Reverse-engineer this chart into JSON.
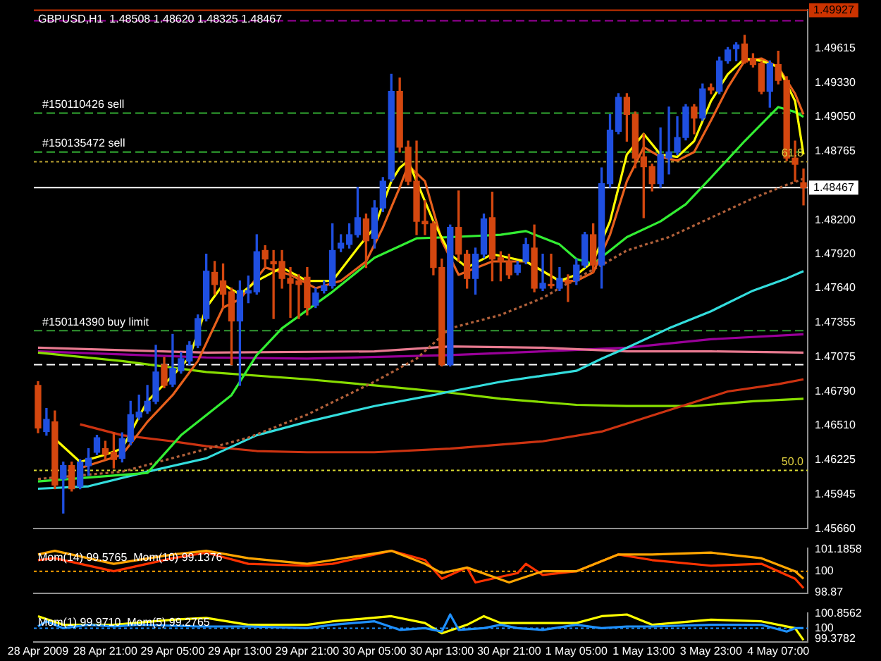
{
  "chart_data": [
    {
      "type": "candlestick",
      "title": "GBPUSD,H1  1.48508 1.48620 1.48325 1.48467",
      "tick_labels": "y",
      "ylim": [
        1.4566,
        1.4993
      ],
      "categories": [
        null,
        null,
        null,
        null,
        null,
        null,
        null,
        null,
        null,
        null,
        null,
        null,
        null,
        null,
        null,
        null,
        null,
        null,
        null,
        null,
        null,
        null,
        null,
        null,
        null,
        null,
        null,
        null,
        null,
        null,
        null,
        null,
        null,
        null,
        null,
        null,
        null,
        null,
        null,
        null,
        null,
        null,
        null,
        null,
        null,
        null,
        null,
        null,
        null,
        null,
        null,
        null,
        null,
        null,
        null,
        null,
        null,
        null,
        null,
        null,
        null,
        null,
        null,
        null,
        null,
        null,
        null,
        null,
        null,
        null,
        null,
        null,
        null,
        null,
        null,
        null,
        null,
        null,
        null,
        null,
        null,
        null,
        null,
        null,
        null,
        null,
        null,
        null,
        null,
        null,
        null,
        null
      ],
      "yticks": [
        {
          "value": 1.49615,
          "label": "1.49615"
        },
        {
          "value": 1.4933,
          "label": "1.49330"
        },
        {
          "value": 1.4905,
          "label": "1.49050"
        },
        {
          "value": 1.48765,
          "label": "1.48765"
        },
        {
          "value": 1.482,
          "label": "1.48200"
        },
        {
          "value": 1.4792,
          "label": "1.47920"
        },
        {
          "value": 1.4764,
          "label": "1.47640"
        },
        {
          "value": 1.47355,
          "label": "1.47355"
        },
        {
          "value": 1.47075,
          "label": "1.47075"
        },
        {
          "value": 1.4679,
          "label": "1.46790"
        },
        {
          "value": 1.4651,
          "label": "1.46510"
        },
        {
          "value": 1.46225,
          "label": "1.46225"
        },
        {
          "value": 1.45945,
          "label": "1.45945"
        },
        {
          "value": 1.4566,
          "label": "1.45660"
        }
      ],
      "ohlc": [
        [
          1.4684,
          1.4687,
          1.4645,
          1.4649
        ],
        [
          1.4646,
          1.4665,
          1.4643,
          1.4656
        ],
        [
          1.4654,
          1.4663,
          1.4599,
          1.4602
        ],
        [
          1.4607,
          1.4621,
          1.4579,
          1.4618
        ],
        [
          1.4618,
          1.4621,
          1.4597,
          1.4599
        ],
        [
          1.4601,
          1.4623,
          1.4599,
          1.4621
        ],
        [
          1.4618,
          1.4632,
          1.461,
          1.4624
        ],
        [
          1.4629,
          1.4643,
          1.4627,
          1.4641
        ],
        [
          1.4632,
          1.4638,
          1.4623,
          1.4627
        ],
        [
          1.4629,
          1.4645,
          1.4616,
          1.4623
        ],
        [
          1.4624,
          1.4645,
          1.4621,
          1.464
        ],
        [
          1.4638,
          1.4671,
          1.4635,
          1.466
        ],
        [
          1.4658,
          1.4676,
          1.4656,
          1.4662
        ],
        [
          1.4663,
          1.4684,
          1.4661,
          1.4671
        ],
        [
          1.4671,
          1.4717,
          1.4669,
          1.4695
        ],
        [
          1.4701,
          1.4707,
          1.4682,
          1.4684
        ],
        [
          1.4685,
          1.4726,
          1.4683,
          1.4698
        ],
        [
          1.4696,
          1.4711,
          1.4694,
          1.4706
        ],
        [
          1.4704,
          1.472,
          1.4701,
          1.4717
        ],
        [
          1.4717,
          1.4742,
          1.4715,
          1.4739
        ],
        [
          1.4739,
          1.4792,
          1.4737,
          1.4778
        ],
        [
          1.4777,
          1.4786,
          1.4759,
          1.4767
        ],
        [
          1.477,
          1.4784,
          1.4748,
          1.4759
        ],
        [
          1.4761,
          1.4764,
          1.4701,
          1.4737
        ],
        [
          1.4737,
          1.477,
          1.4684,
          1.4762
        ],
        [
          1.476,
          1.4774,
          1.4752,
          1.4762
        ],
        [
          1.4761,
          1.4808,
          1.4759,
          1.4794
        ],
        [
          1.4795,
          1.4799,
          1.4781,
          1.4788
        ],
        [
          1.4786,
          1.4795,
          1.4739,
          1.4784
        ],
        [
          1.4786,
          1.4795,
          1.4764,
          1.4772
        ],
        [
          1.4772,
          1.4781,
          1.474,
          1.4768
        ],
        [
          1.477,
          1.4775,
          1.4739,
          1.4767
        ],
        [
          1.4773,
          1.4781,
          1.4742,
          1.4748
        ],
        [
          1.475,
          1.4764,
          1.4748,
          1.476
        ],
        [
          1.4762,
          1.477,
          1.476,
          1.4766
        ],
        [
          1.4766,
          1.4817,
          1.4764,
          1.4795
        ],
        [
          1.4797,
          1.4808,
          1.4794,
          1.4801
        ],
        [
          1.48,
          1.4817,
          1.4797,
          1.4808
        ],
        [
          1.4808,
          1.4847,
          1.4806,
          1.4822
        ],
        [
          1.4821,
          1.4825,
          1.4781,
          1.4803
        ],
        [
          1.4805,
          1.4836,
          1.4797,
          1.483
        ],
        [
          1.483,
          1.4855,
          1.4827,
          1.4852
        ],
        [
          1.4854,
          1.494,
          1.4852,
          1.4926
        ],
        [
          1.4926,
          1.4937,
          1.4876,
          1.488
        ],
        [
          1.488,
          1.4885,
          1.4849,
          1.4852
        ],
        [
          1.4852,
          1.4885,
          1.4808,
          1.4819
        ],
        [
          1.4819,
          1.4836,
          1.4808,
          1.4817
        ],
        [
          1.4817,
          1.4819,
          1.4775,
          1.4781
        ],
        [
          1.4781,
          1.4788,
          1.47,
          1.4701
        ],
        [
          1.4701,
          1.4816,
          1.47,
          1.4814
        ],
        [
          1.4814,
          1.4844,
          1.4786,
          1.4792
        ],
        [
          1.4792,
          1.4795,
          1.4764,
          1.4772
        ],
        [
          1.4772,
          1.4797,
          1.4759,
          1.4792
        ],
        [
          1.4792,
          1.4825,
          1.4789,
          1.4821
        ],
        [
          1.4822,
          1.4843,
          1.477,
          1.4788
        ],
        [
          1.4789,
          1.4794,
          1.477,
          1.4786
        ],
        [
          1.4786,
          1.4792,
          1.4772,
          1.4775
        ],
        [
          1.4777,
          1.4786,
          1.4775,
          1.4783
        ],
        [
          1.4786,
          1.4805,
          1.4784,
          1.48
        ],
        [
          1.4797,
          1.4816,
          1.4761,
          1.4764
        ],
        [
          1.4764,
          1.4792,
          1.4762,
          1.4768
        ],
        [
          1.4767,
          1.4792,
          1.4764,
          1.4766
        ],
        [
          1.4764,
          1.4781,
          1.4762,
          1.4772
        ],
        [
          1.477,
          1.4775,
          1.4753,
          1.4768
        ],
        [
          1.477,
          1.4788,
          1.4767,
          1.4783
        ],
        [
          1.4783,
          1.481,
          1.4781,
          1.4808
        ],
        [
          1.4808,
          1.4817,
          1.4777,
          1.4783
        ],
        [
          1.4783,
          1.4863,
          1.4764,
          1.485
        ],
        [
          1.485,
          1.4907,
          1.4847,
          1.4894
        ],
        [
          1.4893,
          1.4924,
          1.4891,
          1.4921
        ],
        [
          1.4921,
          1.4924,
          1.4885,
          1.4907
        ],
        [
          1.4907,
          1.4909,
          1.4863,
          1.4871
        ],
        [
          1.4872,
          1.4891,
          1.4822,
          1.4864
        ],
        [
          1.4864,
          1.4866,
          1.4844,
          1.485
        ],
        [
          1.485,
          1.4896,
          1.4847,
          1.4874
        ],
        [
          1.4871,
          1.4913,
          1.4858,
          1.4876
        ],
        [
          1.4876,
          1.4905,
          1.4874,
          1.4888
        ],
        [
          1.4888,
          1.4915,
          1.4886,
          1.4913
        ],
        [
          1.4913,
          1.4915,
          1.4891,
          1.4904
        ],
        [
          1.4904,
          1.4932,
          1.4902,
          1.4928
        ],
        [
          1.4929,
          1.4932,
          1.4924,
          1.4927
        ],
        [
          1.4926,
          1.4954,
          1.4924,
          1.4951
        ],
        [
          1.4951,
          1.4962,
          1.4949,
          1.496
        ],
        [
          1.4961,
          1.4966,
          1.4951,
          1.4964
        ],
        [
          1.4965,
          1.4972,
          1.4949,
          1.495
        ],
        [
          1.4953,
          1.4957,
          1.4946,
          1.4948
        ],
        [
          1.4949,
          1.4951,
          1.4924,
          1.4926
        ],
        [
          1.4926,
          1.4951,
          1.4913,
          1.4949
        ],
        [
          1.4948,
          1.4959,
          1.4932,
          1.4935
        ],
        [
          1.4935,
          1.4938,
          1.4869,
          1.4871
        ],
        [
          1.4871,
          1.4885,
          1.4852,
          1.4866
        ],
        [
          1.48508,
          1.4862,
          1.48325,
          1.48467
        ]
      ],
      "series": [
        {
          "type": "line",
          "color": "#ffff00",
          "values": [
            null,
            null,
            1.464,
            null,
            null,
            1.4621,
            null,
            null,
            1.4627,
            null,
            1.4632,
            null,
            null,
            1.4671,
            null,
            null,
            1.4692,
            null,
            1.4707,
            null,
            1.4748,
            null,
            1.4767,
            null,
            1.4759,
            null,
            1.477,
            null,
            null,
            1.4781,
            null,
            null,
            1.477,
            null,
            null,
            1.477,
            null,
            null,
            1.4797,
            null,
            1.4814,
            null,
            1.4852,
            1.4863,
            1.4869,
            1.4852,
            null,
            1.4819,
            null,
            1.4792,
            null,
            1.4781,
            null,
            null,
            1.4792,
            null,
            null,
            null,
            1.4786,
            null,
            null,
            null,
            1.477,
            null,
            1.4775,
            null,
            1.4786,
            null,
            1.4819,
            null,
            1.4874,
            null,
            1.4891,
            null,
            1.4874,
            null,
            1.4872,
            null,
            1.4885,
            null,
            1.4918,
            null,
            1.494,
            null,
            1.4953,
            null,
            1.4951,
            null,
            1.4946,
            null,
            1.4918,
            1.4874
          ]
        },
        {
          "type": "line",
          "color": "#e8601c",
          "values": [
            null,
            null,
            null,
            null,
            null,
            1.4616,
            null,
            null,
            null,
            null,
            1.4627,
            null,
            null,
            1.4654,
            null,
            null,
            1.4676,
            null,
            null,
            1.4704,
            null,
            null,
            1.4748,
            null,
            1.4755,
            null,
            null,
            1.4781,
            null,
            null,
            1.4775,
            null,
            null,
            1.4764,
            null,
            null,
            1.477,
            null,
            null,
            1.4786,
            null,
            1.4814,
            null,
            1.4847,
            1.4865,
            null,
            1.4852,
            null,
            1.4803,
            null,
            1.4775,
            null,
            null,
            null,
            1.4786,
            null,
            null,
            null,
            1.4786,
            null,
            null,
            null,
            1.477,
            null,
            1.477,
            null,
            1.4777,
            null,
            1.4808,
            null,
            1.4852,
            null,
            1.488,
            null,
            1.4872,
            null,
            1.4869,
            null,
            1.4876,
            null,
            1.4902,
            null,
            1.4929,
            null,
            1.4951,
            null,
            1.4953,
            null,
            1.4946,
            null,
            1.4924,
            1.4907
          ]
        },
        {
          "type": "line",
          "color": "#33ee33",
          "values": [
            1.4605,
            null,
            null,
            null,
            null,
            null,
            null,
            null,
            null,
            null,
            null,
            null,
            null,
            1.4612,
            null,
            null,
            null,
            1.4643,
            null,
            null,
            null,
            null,
            null,
            1.4676,
            null,
            null,
            1.4709,
            null,
            null,
            1.4731,
            null,
            null,
            null,
            null,
            null,
            1.4761,
            null,
            null,
            null,
            null,
            1.4789,
            null,
            null,
            null,
            null,
            1.4805,
            null,
            null,
            null,
            1.4806,
            null,
            null,
            null,
            null,
            null,
            1.4808,
            null,
            null,
            1.4811,
            null,
            null,
            null,
            1.48,
            null,
            1.4788,
            null,
            1.4784,
            null,
            1.4795,
            null,
            1.4806,
            null,
            null,
            null,
            1.4819,
            null,
            null,
            1.4833,
            null,
            null,
            1.4855,
            null,
            null,
            null,
            1.4885,
            null,
            null,
            null,
            1.4913,
            null,
            1.4909,
            1.4905
          ]
        },
        {
          "type": "line",
          "color": "#b0603a",
          "line_style": "dotted",
          "values": [
            1.4607,
            null,
            null,
            null,
            null,
            null,
            null,
            null,
            null,
            null,
            1.4613,
            null,
            null,
            null,
            null,
            null,
            null,
            null,
            null,
            null,
            null,
            null,
            null,
            null,
            null,
            1.4641,
            null,
            null,
            null,
            null,
            null,
            null,
            1.466,
            null,
            null,
            null,
            null,
            null,
            null,
            null,
            1.4687,
            null,
            null,
            null,
            null,
            1.4706,
            null,
            null,
            null,
            1.4731,
            null,
            null,
            null,
            null,
            null,
            1.4742,
            null,
            null,
            null,
            null,
            1.4756,
            null,
            null,
            null,
            1.4772,
            null,
            null,
            1.4783,
            null,
            null,
            1.4795,
            null,
            null,
            null,
            null,
            1.4806,
            null,
            null,
            null,
            null,
            1.4822,
            null,
            null,
            null,
            null,
            1.4838,
            null,
            null,
            null,
            1.4849,
            null,
            1.4854
          ]
        },
        {
          "type": "line",
          "color": "#33dddd",
          "values": [
            1.4599,
            null,
            null,
            null,
            null,
            null,
            1.4601,
            null,
            null,
            null,
            null,
            null,
            null,
            1.4613,
            null,
            null,
            null,
            null,
            null,
            null,
            1.4624,
            null,
            null,
            null,
            null,
            null,
            1.4643,
            null,
            null,
            null,
            null,
            null,
            1.4654,
            null,
            null,
            null,
            null,
            null,
            null,
            null,
            1.4667,
            null,
            null,
            null,
            null,
            null,
            null,
            1.4676,
            null,
            1.4679,
            null,
            null,
            null,
            null,
            null,
            1.4687,
            null,
            null,
            null,
            null,
            1.4692,
            null,
            null,
            null,
            1.4696,
            null,
            null,
            1.4706,
            null,
            null,
            1.4715,
            null,
            null,
            null,
            null,
            1.4731,
            null,
            null,
            null,
            null,
            1.4745,
            null,
            null,
            null,
            null,
            1.4762,
            null,
            null,
            null,
            1.4772,
            null,
            1.4778
          ]
        },
        {
          "type": "line",
          "color": "#cc3311",
          "values": [
            null,
            null,
            null,
            null,
            null,
            1.4652,
            null,
            null,
            null,
            null,
            1.4643,
            null,
            null,
            null,
            null,
            null,
            1.4638,
            null,
            null,
            null,
            1.4634,
            null,
            null,
            null,
            null,
            null,
            1.463,
            null,
            null,
            null,
            null,
            null,
            1.4629,
            null,
            null,
            null,
            null,
            null,
            null,
            null,
            1.4629,
            null,
            null,
            null,
            null,
            null,
            null,
            null,
            null,
            1.4632,
            null,
            null,
            null,
            null,
            null,
            null,
            null,
            null,
            null,
            null,
            1.4638,
            null,
            null,
            null,
            null,
            null,
            null,
            1.4646,
            null,
            null,
            null,
            null,
            1.4657,
            null,
            null,
            null,
            null,
            1.4668,
            null,
            null,
            null,
            null,
            1.4679,
            null,
            null,
            null,
            null,
            null,
            1.4685,
            null,
            null,
            1.4689
          ]
        },
        {
          "type": "line",
          "color": "#88dd00",
          "values": [
            1.4711,
            null,
            null,
            null,
            null,
            null,
            null,
            null,
            null,
            null,
            1.4704,
            null,
            null,
            null,
            null,
            null,
            null,
            null,
            null,
            null,
            1.4695,
            null,
            null,
            null,
            null,
            null,
            null,
            null,
            null,
            null,
            null,
            null,
            1.4689,
            null,
            null,
            null,
            null,
            null,
            null,
            null,
            1.4684,
            null,
            null,
            null,
            null,
            null,
            null,
            null,
            null,
            1.4678,
            null,
            null,
            null,
            null,
            null,
            1.4673,
            null,
            null,
            null,
            null,
            null,
            null,
            null,
            null,
            1.4668,
            null,
            null,
            null,
            null,
            null,
            1.4667,
            null,
            null,
            null,
            null,
            null,
            null,
            null,
            1.4667,
            null,
            null,
            null,
            null,
            null,
            null,
            1.4671,
            null,
            null,
            null,
            null,
            null,
            1.4673
          ]
        },
        {
          "type": "line",
          "color": "#e87a90",
          "values": [
            1.4715,
            null,
            null,
            null,
            null,
            null,
            null,
            null,
            null,
            null,
            null,
            null,
            null,
            null,
            null,
            null,
            null,
            null,
            null,
            null,
            1.4711,
            null,
            null,
            null,
            null,
            null,
            null,
            null,
            null,
            null,
            null,
            null,
            null,
            null,
            null,
            null,
            null,
            null,
            null,
            null,
            1.4712,
            null,
            null,
            null,
            null,
            null,
            null,
            null,
            null,
            1.4716,
            null,
            null,
            null,
            null,
            null,
            null,
            null,
            null,
            null,
            null,
            1.4715,
            null,
            null,
            null,
            null,
            null,
            null,
            null,
            null,
            null,
            1.4712,
            null,
            null,
            null,
            null,
            null,
            null,
            null,
            null,
            null,
            1.4712,
            null,
            null,
            null,
            null,
            null,
            null,
            null,
            null,
            null,
            null,
            1.4711
          ]
        },
        {
          "type": "line",
          "color": "#990099",
          "values": [
            1.4712,
            null,
            null,
            null,
            null,
            null,
            null,
            null,
            null,
            null,
            null,
            null,
            null,
            null,
            null,
            null,
            null,
            null,
            null,
            null,
            1.4707,
            null,
            null,
            null,
            null,
            null,
            null,
            null,
            null,
            null,
            null,
            null,
            1.4706,
            null,
            null,
            null,
            null,
            null,
            null,
            null,
            null,
            null,
            null,
            null,
            null,
            null,
            null,
            null,
            null,
            1.4709,
            null,
            null,
            null,
            null,
            null,
            null,
            null,
            null,
            null,
            null,
            1.4712,
            null,
            null,
            null,
            null,
            null,
            null,
            null,
            null,
            null,
            1.4715,
            null,
            null,
            null,
            null,
            null,
            null,
            null,
            null,
            null,
            1.4722,
            null,
            null,
            null,
            null,
            null,
            null,
            null,
            null,
            null,
            null,
            1.4726
          ]
        }
      ],
      "ref_lines": [
        {
          "axis": "y",
          "value": 1.49927,
          "label": "1.49927",
          "color": "#cc3300",
          "line_style": "solid"
        },
        {
          "axis": "y",
          "value": 1.4984,
          "color": "#990099",
          "line_style": "dashed"
        },
        {
          "axis": "y",
          "value": 1.4908,
          "label": "#150110426 sell",
          "color": "#33aa33",
          "line_style": "dashed"
        },
        {
          "axis": "y",
          "value": 1.4876,
          "label": "#150135472 sell",
          "color": "#33aa33",
          "line_style": "dashed"
        },
        {
          "axis": "y",
          "value": 1.4868,
          "color": "#b8a030",
          "line_style": "dotted"
        },
        {
          "axis": "y",
          "value": 1.48467,
          "label": "1.48467",
          "color": "#ffffff",
          "line_style": "solid"
        },
        {
          "axis": "y",
          "value": 1.4729,
          "label": "#150114390 buy limit",
          "color": "#339933",
          "line_style": "dashed"
        },
        {
          "axis": "y",
          "value": 1.4701,
          "color": "#ffffff",
          "line_style": "dashed"
        },
        {
          "axis": "y",
          "value": 1.4614,
          "color": "#dddd33",
          "line_style": "dotted"
        }
      ],
      "annotations": [
        {
          "text": "61.8",
          "y": 1.4868
        },
        {
          "text": "50.0",
          "y": 1.4614
        }
      ]
    },
    {
      "type": "line",
      "title": "Mom(14) 99.5765  Mom(10) 99.1376",
      "tick_labels": "y",
      "ylim": [
        98.8,
        101.25
      ],
      "yticks": [
        101.1858,
        100,
        98.87
      ],
      "categories": [
        null,
        null,
        null,
        null,
        null,
        null,
        null,
        null,
        null,
        null,
        null,
        null,
        null,
        null,
        null,
        null,
        null,
        null,
        null,
        null,
        null,
        null,
        null,
        null,
        null,
        null,
        null,
        null,
        null,
        null,
        null,
        null,
        null,
        null,
        null,
        null,
        null,
        null,
        null,
        null,
        null,
        null,
        null,
        null,
        null,
        null,
        null,
        null,
        null,
        null,
        null,
        null,
        null,
        null,
        null,
        null,
        null,
        null,
        null,
        null,
        null,
        null,
        null,
        null,
        null,
        null,
        null,
        null,
        null,
        null,
        null,
        null,
        null,
        null,
        null,
        null,
        null,
        null,
        null,
        null,
        null,
        null,
        null,
        null,
        null,
        null,
        null,
        null,
        null,
        null,
        null,
        null
      ],
      "series": [
        {
          "color": "#ffa500",
          "values": [
            100.9,
            null,
            101.1,
            null,
            null,
            null,
            null,
            null,
            null,
            100.4,
            null,
            null,
            null,
            null,
            null,
            null,
            100.9,
            null,
            null,
            null,
            101.1,
            null,
            null,
            null,
            null,
            100.7,
            null,
            null,
            null,
            null,
            null,
            null,
            100.4,
            null,
            null,
            100.6,
            null,
            null,
            null,
            null,
            null,
            null,
            101.1,
            null,
            null,
            null,
            100.4,
            null,
            99.9,
            null,
            null,
            100.2,
            null,
            null,
            null,
            null,
            99.4,
            null,
            null,
            null,
            100.0,
            null,
            null,
            null,
            100.0,
            null,
            null,
            null,
            null,
            100.9,
            null,
            null,
            null,
            100.9,
            null,
            null,
            null,
            null,
            null,
            null,
            101.0,
            null,
            null,
            null,
            null,
            null,
            100.7,
            null,
            null,
            null,
            100.0,
            99.6
          ]
        },
        {
          "color": "#ff3300",
          "values": [
            100.6,
            null,
            100.7,
            null,
            null,
            null,
            null,
            null,
            null,
            100.0,
            null,
            null,
            null,
            null,
            null,
            null,
            100.7,
            null,
            null,
            null,
            101.0,
            null,
            null,
            null,
            null,
            100.4,
            null,
            null,
            null,
            null,
            null,
            null,
            100.3,
            null,
            null,
            100.4,
            null,
            null,
            null,
            null,
            null,
            null,
            101.1,
            null,
            null,
            null,
            100.6,
            null,
            99.6,
            null,
            null,
            100.2,
            99.4,
            null,
            null,
            null,
            null,
            99.9,
            100.4,
            null,
            99.8,
            null,
            null,
            null,
            100.0,
            null,
            null,
            null,
            null,
            100.9,
            null,
            null,
            null,
            100.6,
            null,
            null,
            null,
            null,
            null,
            null,
            100.3,
            null,
            null,
            null,
            null,
            null,
            100.4,
            null,
            null,
            null,
            99.6,
            99.1
          ]
        }
      ],
      "ref_lines": [
        {
          "axis": "y",
          "value": 100,
          "color": "#ffa500",
          "line_style": "dotted"
        }
      ]
    },
    {
      "type": "line",
      "title": "Mom(1) 99.9710  Mom(5) 99.2765",
      "ylim": [
        99.2,
        100.9
      ],
      "yticks": [
        100.8562,
        100,
        99.3782
      ],
      "categories": [
        "28 Apr 2009",
        null,
        null,
        null,
        null,
        null,
        null,
        null,
        "28 Apr 21:00",
        null,
        null,
        null,
        null,
        null,
        null,
        null,
        "29 Apr 05:00",
        null,
        null,
        null,
        null,
        null,
        null,
        null,
        "29 Apr 13:00",
        null,
        null,
        null,
        null,
        null,
        null,
        null,
        "29 Apr 21:00",
        null,
        null,
        null,
        null,
        null,
        null,
        null,
        "30 Apr 05:00",
        null,
        null,
        null,
        null,
        null,
        null,
        null,
        "30 Apr 13:00",
        null,
        null,
        null,
        null,
        null,
        null,
        null,
        "30 Apr 21:00",
        null,
        null,
        null,
        null,
        null,
        null,
        null,
        "1 May 05:00",
        null,
        null,
        null,
        null,
        null,
        null,
        null,
        "1 May 13:00",
        null,
        null,
        null,
        null,
        null,
        null,
        null,
        "3 May 23:00",
        null,
        null,
        null,
        null,
        null,
        null,
        null,
        "4 May 07:00",
        null,
        null,
        null
      ],
      "series": [
        {
          "color": "#1e90ff",
          "values": [
            100.1,
            100.4,
            null,
            100.0,
            null,
            null,
            100.2,
            null,
            null,
            100.1,
            null,
            null,
            100.2,
            null,
            null,
            null,
            null,
            null,
            null,
            100.1,
            null,
            null,
            null,
            null,
            null,
            100.1,
            null,
            null,
            null,
            null,
            null,
            null,
            100.0,
            null,
            null,
            100.2,
            null,
            null,
            null,
            null,
            100.4,
            null,
            null,
            99.9,
            null,
            null,
            100.0,
            null,
            99.8,
            100.8,
            99.9,
            null,
            null,
            100.0,
            null,
            100.2,
            null,
            100.0,
            null,
            null,
            99.9,
            null,
            null,
            null,
            100.2,
            null,
            null,
            100.0,
            null,
            null,
            100.1,
            null,
            null,
            100.1,
            null,
            null,
            null,
            null,
            null,
            null,
            100.2,
            null,
            null,
            null,
            null,
            null,
            100.2,
            null,
            null,
            99.8,
            100.0,
            100.0
          ]
        },
        {
          "color": "#ffff00",
          "values": [
            100.7,
            null,
            null,
            100.2,
            null,
            null,
            null,
            null,
            null,
            100.2,
            null,
            null,
            null,
            null,
            null,
            null,
            100.5,
            null,
            null,
            null,
            100.6,
            null,
            null,
            null,
            null,
            100.2,
            null,
            null,
            null,
            null,
            null,
            null,
            100.2,
            null,
            null,
            100.4,
            null,
            null,
            null,
            null,
            null,
            null,
            100.7,
            null,
            null,
            null,
            100.3,
            null,
            99.7,
            null,
            null,
            100.2,
            null,
            100.7,
            null,
            100.3,
            null,
            null,
            null,
            null,
            100.3,
            null,
            null,
            null,
            100.3,
            null,
            null,
            100.7,
            null,
            null,
            100.8,
            null,
            null,
            100.2,
            null,
            null,
            null,
            null,
            null,
            null,
            100.5,
            null,
            null,
            null,
            null,
            null,
            100.4,
            null,
            null,
            null,
            100.0,
            99.3
          ]
        }
      ],
      "ref_lines": [
        {
          "axis": "y",
          "value": 100,
          "color": "#1e90ff",
          "line_style": "dotted"
        }
      ]
    }
  ]
}
